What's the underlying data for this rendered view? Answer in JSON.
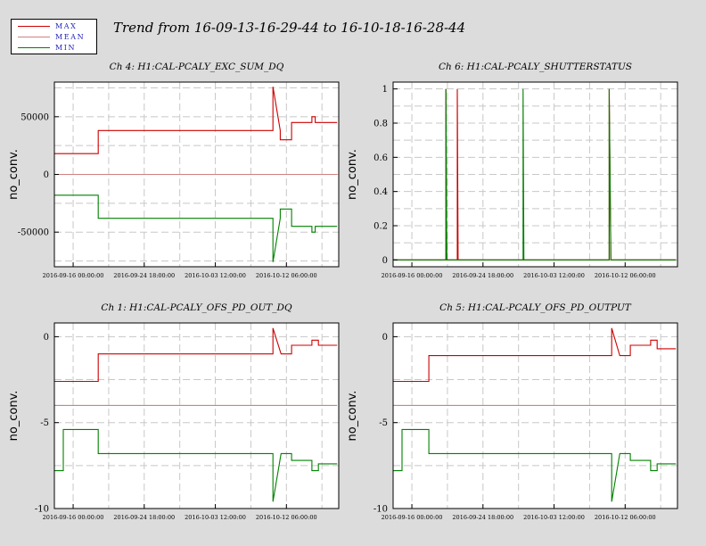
{
  "title": "Trend from 16-09-13-16-29-44 to 16-10-18-16-28-44",
  "legend": [
    {
      "name": "MAX",
      "color": "#cc0000"
    },
    {
      "name": "MEAN",
      "color": "#d08080"
    },
    {
      "name": "MIN",
      "color": "#008000"
    }
  ],
  "colors": {
    "max": "#cc0000",
    "mean": "#d08080",
    "min": "#008000",
    "grid": "#c8c8c8"
  },
  "chart_data": [
    {
      "type": "line",
      "title": "Ch 4: H1:CAL-PCALY_EXC_SUM_DQ",
      "ylabel": "no_conv.",
      "xlim": [
        0,
        35
      ],
      "ylim": [
        -80000,
        80000
      ],
      "yticks": [
        50000,
        0,
        -50000
      ],
      "yticklabels": [
        "50000",
        "0",
        "-50000"
      ],
      "xticks": [
        2.31,
        11.06,
        19.81,
        28.56
      ],
      "xticklabels": [
        "2016-09-16 00:00:00",
        "2016-09-24 18:00:00",
        "2016-10-03 12:00:00",
        "2016-10-12 06:00:00"
      ],
      "series": [
        {
          "name": "MAX",
          "x": [
            0,
            5.4,
            5.4,
            26.9,
            26.9,
            27.8,
            27.8,
            29.2,
            29.2,
            31.7,
            31.7,
            32.1,
            32.1,
            34.8
          ],
          "y": [
            18000,
            18000,
            38000,
            38000,
            76000,
            38000,
            30000,
            30000,
            45000,
            45000,
            50000,
            50000,
            45000,
            45000
          ]
        },
        {
          "name": "MEAN",
          "x": [
            0,
            5.4,
            5.4,
            27.0,
            27.0,
            34.8
          ],
          "y": [
            0,
            0,
            0,
            0,
            0,
            0
          ]
        },
        {
          "name": "MIN",
          "x": [
            0,
            5.4,
            5.4,
            26.9,
            26.9,
            27.8,
            27.8,
            29.2,
            29.2,
            31.7,
            31.7,
            32.1,
            32.1,
            34.8
          ],
          "y": [
            -18000,
            -18000,
            -38000,
            -38000,
            -76000,
            -38000,
            -30000,
            -30000,
            -45000,
            -45000,
            -50000,
            -50000,
            -45000,
            -45000
          ]
        }
      ]
    },
    {
      "type": "line",
      "title": "Ch 6: H1:CAL-PCALY_SHUTTERSTATUS",
      "ylabel": "no_conv.",
      "xlim": [
        0,
        35
      ],
      "ylim": [
        -0.04,
        1.04
      ],
      "yticks": [
        1,
        0.8,
        0.6,
        0.4,
        0.2,
        0
      ],
      "yticklabels": [
        "1",
        "0.8",
        "0.6",
        "0.4",
        "0.2",
        "0"
      ],
      "xticks": [
        2.31,
        11.06,
        19.81,
        28.56
      ],
      "xticklabels": [
        "2016-09-16 00:00:00",
        "2016-09-24 18:00:00",
        "2016-10-03 12:00:00",
        "2016-10-12 06:00:00"
      ],
      "series": [
        {
          "name": "MAX",
          "x": [
            0,
            6.5,
            6.5,
            6.6,
            7.9,
            7.9,
            8.0,
            26.6,
            26.6,
            26.8,
            34.8
          ],
          "y": [
            0,
            0,
            1,
            0,
            0,
            1,
            0,
            0,
            1,
            0,
            0
          ]
        },
        {
          "name": "MIN",
          "x": [
            0,
            6.5,
            6.5,
            6.6,
            16.0,
            16.0,
            16.1,
            26.6,
            26.6,
            26.8,
            34.8
          ],
          "y": [
            0,
            0,
            1,
            0,
            0,
            1,
            0,
            0,
            1,
            0,
            0
          ]
        }
      ]
    },
    {
      "type": "line",
      "title": "Ch 1: H1:CAL-PCALY_OFS_PD_OUT_DQ",
      "ylabel": "no_conv.",
      "xlim": [
        0,
        35
      ],
      "ylim": [
        -10,
        0.8
      ],
      "yticks": [
        0,
        -5,
        -10
      ],
      "yticklabels": [
        "0",
        "-5",
        "-10"
      ],
      "xticks": [
        2.31,
        11.06,
        19.81,
        28.56
      ],
      "xticklabels": [
        "2016-09-16 00:00:00",
        "2016-09-24 18:00:00",
        "2016-10-03 12:00:00",
        "2016-10-12 06:00:00"
      ],
      "series": [
        {
          "name": "MAX",
          "x": [
            0,
            1.1,
            1.1,
            5.4,
            5.4,
            6.0,
            6.0,
            26.9,
            26.9,
            27.9,
            27.9,
            29.2,
            29.2,
            31.7,
            31.7,
            32.5,
            32.5,
            34.8
          ],
          "y": [
            -2.6,
            -2.6,
            -2.6,
            -2.6,
            -1.0,
            -1.0,
            -1.0,
            -1.0,
            0.5,
            -1.0,
            -1.0,
            -1.0,
            -0.5,
            -0.5,
            -0.2,
            -0.2,
            -0.5,
            -0.5
          ]
        },
        {
          "name": "MEAN",
          "x": [
            0,
            34.8
          ],
          "y": [
            -4,
            -4
          ]
        },
        {
          "name": "MIN",
          "x": [
            0,
            1.1,
            1.1,
            5.4,
            5.4,
            26.9,
            26.9,
            27.9,
            27.9,
            29.2,
            29.2,
            31.7,
            31.7,
            32.5,
            32.5,
            34.8
          ],
          "y": [
            -7.8,
            -7.8,
            -5.4,
            -5.4,
            -6.8,
            -6.8,
            -9.6,
            -6.8,
            -6.8,
            -6.8,
            -7.2,
            -7.2,
            -7.8,
            -7.8,
            -7.4,
            -7.4
          ]
        }
      ]
    },
    {
      "type": "line",
      "title": "Ch 5: H1:CAL-PCALY_OFS_PD_OUTPUT",
      "ylabel": "no_conv.",
      "xlim": [
        0,
        35
      ],
      "ylim": [
        -10,
        0.8
      ],
      "yticks": [
        0,
        -5,
        -10
      ],
      "yticklabels": [
        "0",
        "-5",
        "-10"
      ],
      "xticks": [
        2.31,
        11.06,
        19.81,
        28.56
      ],
      "xticklabels": [
        "2016-09-16 00:00:00",
        "2016-09-24 18:00:00",
        "2016-10-03 12:00:00",
        "2016-10-12 06:00:00"
      ],
      "series": [
        {
          "name": "MAX",
          "x": [
            0,
            1.1,
            1.1,
            4.4,
            4.4,
            26.9,
            26.9,
            27.9,
            27.9,
            29.2,
            29.2,
            31.7,
            31.7,
            32.5,
            32.5,
            34.8
          ],
          "y": [
            -2.6,
            -2.6,
            -2.6,
            -2.6,
            -1.1,
            -1.1,
            0.5,
            -1.1,
            -1.1,
            -1.1,
            -0.5,
            -0.5,
            -0.2,
            -0.2,
            -0.7,
            -0.7
          ]
        },
        {
          "name": "MEAN",
          "x": [
            0,
            34.8
          ],
          "y": [
            -4,
            -4
          ]
        },
        {
          "name": "MIN",
          "x": [
            0,
            1.1,
            1.1,
            4.4,
            4.4,
            26.9,
            26.9,
            27.9,
            27.9,
            29.2,
            29.2,
            31.7,
            31.7,
            32.5,
            32.5,
            34.8
          ],
          "y": [
            -7.8,
            -7.8,
            -5.4,
            -5.4,
            -6.8,
            -6.8,
            -9.6,
            -6.8,
            -6.8,
            -6.8,
            -7.2,
            -7.2,
            -7.8,
            -7.8,
            -7.4,
            -7.4
          ]
        }
      ]
    }
  ]
}
